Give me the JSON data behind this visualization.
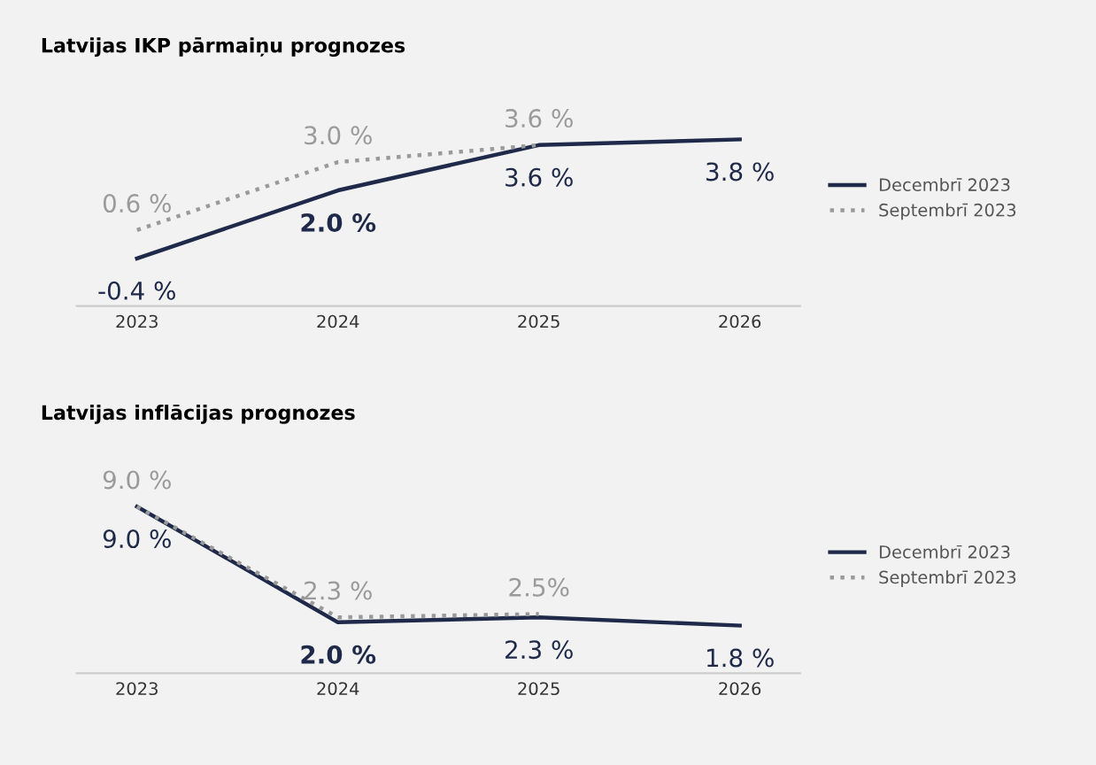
{
  "chart_data": [
    {
      "type": "line",
      "title": "Latvijas IKP pārmaiņu prognozes",
      "categories": [
        "2023",
        "2024",
        "2025",
        "2026"
      ],
      "series": [
        {
          "name": "Decembrī 2023",
          "color": "#1f2a4a",
          "line_style": "solid",
          "values": [
            -0.4,
            2.0,
            3.6,
            3.8
          ],
          "value_labels": [
            "-0.4 %",
            "2.0 %",
            "3.6 %",
            "3.8 %"
          ]
        },
        {
          "name": "Septembrī 2023",
          "color": "#9a9a9a",
          "line_style": "dotted",
          "values": [
            0.6,
            3.0,
            3.6,
            null
          ],
          "value_labels": [
            "0.6 %",
            "3.0 %",
            "3.6 %",
            null
          ]
        }
      ],
      "legend": "right",
      "grid": false,
      "tick_labels": "x"
    },
    {
      "type": "line",
      "title": "Latvijas inflācijas prognozes",
      "categories": [
        "2023",
        "2024",
        "2025",
        "2026"
      ],
      "series": [
        {
          "name": "Decembrī 2023",
          "color": "#1f2a4a",
          "line_style": "solid",
          "values": [
            9.0,
            2.0,
            2.3,
            1.8
          ],
          "value_labels": [
            "9.0 %",
            "2.0 %",
            "2.3 %",
            "1.8 %"
          ]
        },
        {
          "name": "Septembrī 2023",
          "color": "#9a9a9a",
          "line_style": "dotted",
          "values": [
            9.0,
            2.3,
            2.5,
            null
          ],
          "value_labels": [
            "9.0 %",
            "2.3 %",
            "2.5%",
            null
          ]
        }
      ],
      "legend": "right",
      "grid": false,
      "tick_labels": "x"
    }
  ]
}
